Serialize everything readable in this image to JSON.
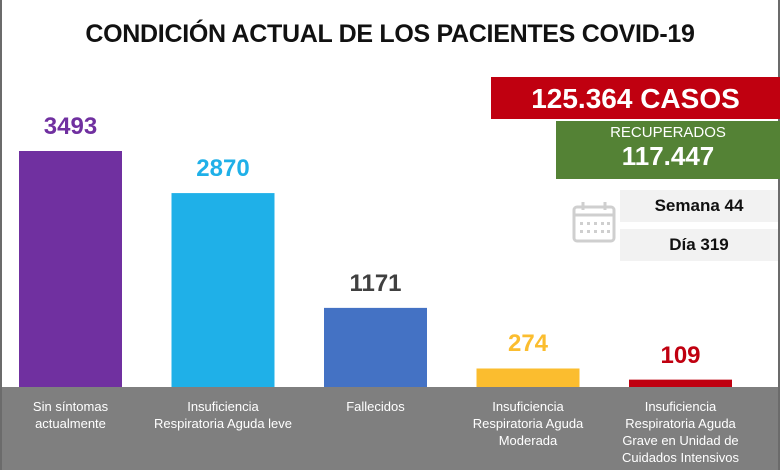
{
  "header": {
    "title": "CONDICIÓN ACTUAL DE LOS PACIENTES COVID-19"
  },
  "summary": {
    "cases": "125.364 CASOS",
    "recovered_label": "RECUPERADOS",
    "recovered_value": "117.447",
    "week": "Semana 44",
    "day": "Día 319",
    "calendar_icon": "calendar-icon"
  },
  "colors": {
    "cases_bg": "#c00010",
    "recovered_bg": "#548235",
    "axis_band": "#7f7f7f"
  },
  "chart_data": {
    "type": "bar",
    "title": "CONDICIÓN ACTUAL DE LOS PACIENTES COVID-19",
    "xlabel": "",
    "ylabel": "",
    "grid": false,
    "legend": "none",
    "ylim": [
      0,
      3493
    ],
    "categories": [
      "Sin síntomas actualmente",
      "Insuficiencia Respiratoria Aguda leve",
      "Fallecidos",
      "Insuficiencia Respiratoria Aguda Moderada",
      "Insuficiencia Respiratoria Aguda Grave en Unidad de Cuidados Intensivos"
    ],
    "category_lines": [
      [
        "Sin síntomas",
        "actualmente"
      ],
      [
        "Insuficiencia",
        "Respiratoria Aguda leve"
      ],
      [
        "Fallecidos"
      ],
      [
        "Insuficiencia",
        "Respiratoria Aguda",
        "Moderada"
      ],
      [
        "Insuficiencia",
        "Respiratoria Aguda",
        "Grave en Unidad de",
        "Cuidados Intensivos"
      ]
    ],
    "values": [
      3493,
      2870,
      1171,
      274,
      109
    ],
    "data_labels": [
      "3493",
      "2870",
      "1171",
      "274",
      "109"
    ],
    "bar_colors": [
      "#7030a0",
      "#1fb0e8",
      "#4472c4",
      "#fbbd2f",
      "#c00010"
    ],
    "label_colors": [
      "#7030a0",
      "#1fb0e8",
      "#404040",
      "#fbbd2f",
      "#c00010"
    ]
  }
}
